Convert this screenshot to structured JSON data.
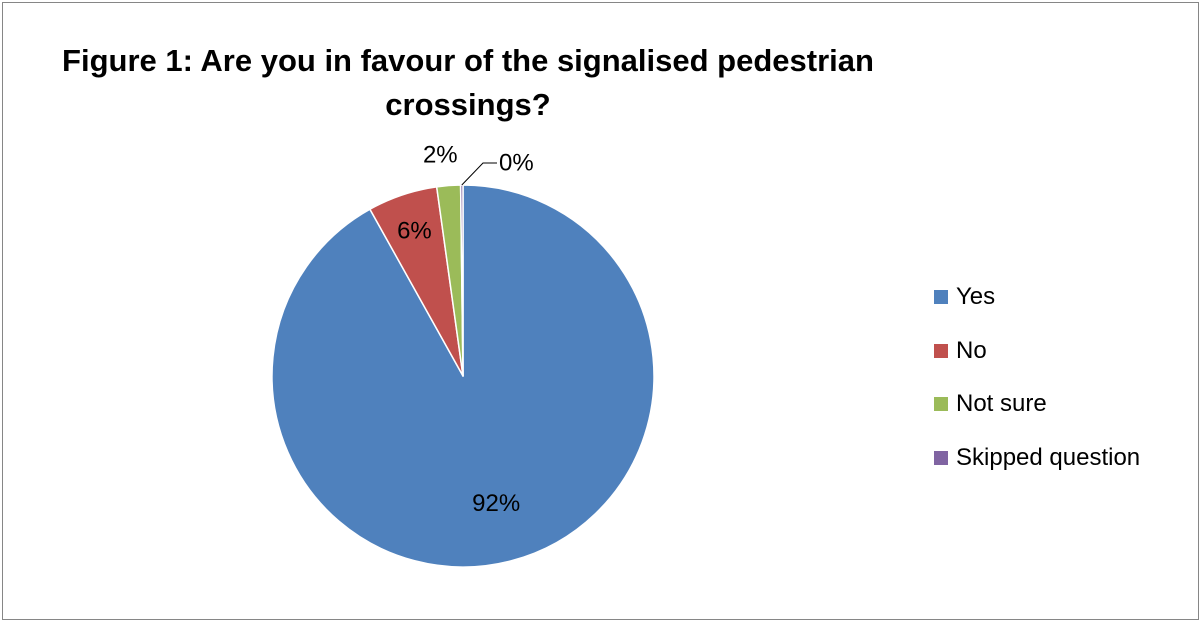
{
  "chart_data": {
    "type": "pie",
    "title_lines": [
      "Figure 1: Are you in favour of the signalised pedestrian",
      "crossings?"
    ],
    "categories": [
      "Yes",
      "No",
      "Not sure",
      "Skipped question"
    ],
    "values": [
      92,
      6,
      2,
      0
    ],
    "labels": [
      "92%",
      "6%",
      "2%",
      "0%"
    ],
    "display_shares": [
      91.9,
      5.9,
      2.0,
      0.2
    ],
    "colors": [
      "#4F81BD",
      "#C0504D",
      "#9BBB59",
      "#8064A2"
    ],
    "start_angle": "12 o'clock",
    "direction": "clockwise",
    "legend_position": "right"
  }
}
